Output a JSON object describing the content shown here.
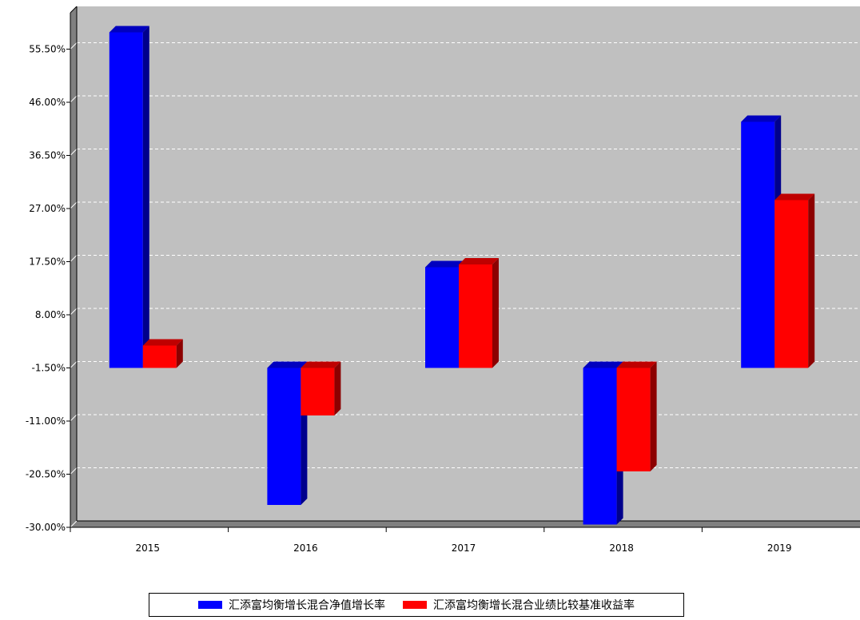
{
  "chart_data": {
    "type": "bar",
    "categories": [
      "2015",
      "2016",
      "2017",
      "2018",
      "2019"
    ],
    "series": [
      {
        "name": "汇添富均衡增长混合净值增长率",
        "color": "#0000ff",
        "values": [
          58.5,
          -26.0,
          16.5,
          -29.5,
          42.5
        ]
      },
      {
        "name": "汇添富均衡增长混合业绩比较基准收益率",
        "color": "#ff0000",
        "values": [
          2.5,
          -10.0,
          17.0,
          -20.0,
          28.5
        ]
      }
    ],
    "y_ticks": [
      "55.50%",
      "46.00%",
      "36.50%",
      "27.00%",
      "17.50%",
      "8.00%",
      "-1.50%",
      "-11.00%",
      "-20.50%",
      "-30.00%"
    ],
    "ylim": [
      -30.0,
      62.0
    ],
    "grid": true,
    "legend_position": "bottom",
    "colors": {
      "plot_bg": "#c0c0c0",
      "grid": "#ffffff"
    }
  }
}
